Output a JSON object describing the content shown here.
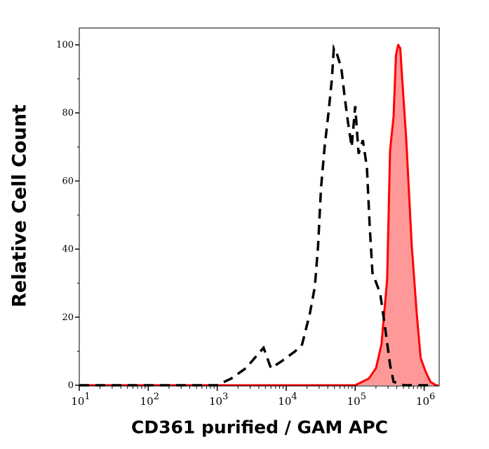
{
  "chart_data": {
    "type": "area",
    "title": "",
    "xlabel": "CD361 purified / GAM APC",
    "ylabel": "Relative Cell Count",
    "xscale": "log",
    "xlim": [
      10,
      1650000.0
    ],
    "ylim": [
      0,
      105
    ],
    "grid": false,
    "x_ticks": [
      {
        "base": "10",
        "exp": "1",
        "value": 10
      },
      {
        "base": "10",
        "exp": "2",
        "value": 100
      },
      {
        "base": "10",
        "exp": "3",
        "value": 1000
      },
      {
        "base": "10",
        "exp": "4",
        "value": 10000
      },
      {
        "base": "10",
        "exp": "5",
        "value": 100000
      },
      {
        "base": "10",
        "exp": "6",
        "value": 1000000
      }
    ],
    "y_ticks": [
      "0",
      "20",
      "40",
      "60",
      "80",
      "100"
    ],
    "series": [
      {
        "style": "dashed",
        "color": "#000000",
        "fill": false,
        "x": [
          10,
          400,
          1000,
          1600,
          2600,
          4700,
          6000,
          8500,
          13500,
          17000,
          22000,
          26000,
          29000,
          32000,
          36000,
          41000,
          46000,
          49000,
          55000,
          63000,
          71000,
          79000,
          89000,
          100000,
          112000,
          129000,
          148000,
          162000,
          178000,
          230000,
          275000,
          320000,
          360000,
          510000,
          1400000
        ],
        "y": [
          0,
          0,
          0,
          2,
          5,
          11,
          5,
          7,
          10,
          12,
          21,
          29,
          41,
          58,
          70,
          80,
          90,
          99,
          97,
          93,
          84,
          77,
          70,
          82,
          68,
          72,
          64,
          47,
          33,
          27,
          16,
          6,
          1,
          0,
          0
        ]
      },
      {
        "style": "solid",
        "color": "#ff0000",
        "fill": true,
        "fill_color": "#ff9999",
        "x": [
          10,
          100000,
          126000,
          158000,
          200000,
          240000,
          290000,
          320000,
          360000,
          390000,
          420000,
          450000,
          480000,
          550000,
          660000,
          780000,
          890000,
          1050000,
          1230000,
          1480000,
          1600000
        ],
        "y": [
          0,
          0,
          1,
          2,
          5,
          12,
          31,
          69,
          79,
          97,
          100,
          99,
          90,
          72,
          41,
          21,
          8,
          4,
          1,
          0,
          0
        ]
      }
    ]
  }
}
